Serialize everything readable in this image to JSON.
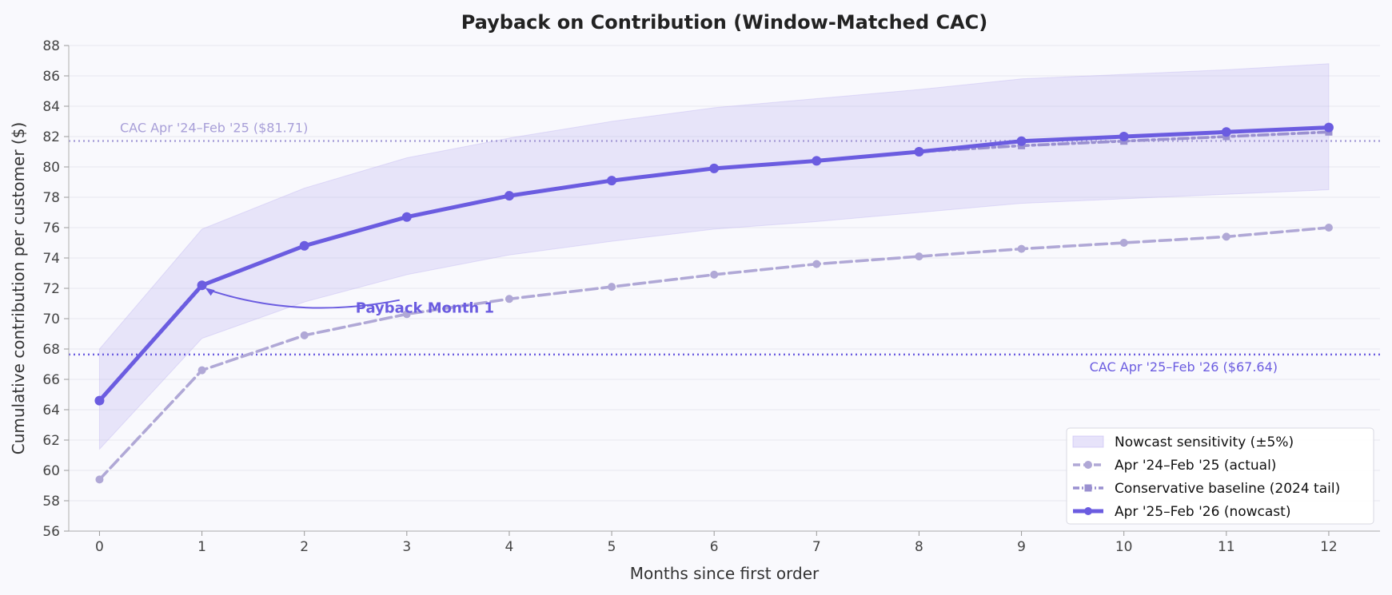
{
  "chart_data": {
    "type": "line",
    "title": "Payback on Contribution (Window-Matched CAC)",
    "xlabel": "Months since first order",
    "ylabel": "Cumulative contribution per customer ($)",
    "x": [
      0,
      1,
      2,
      3,
      4,
      5,
      6,
      7,
      8,
      9,
      10,
      11,
      12
    ],
    "xlim": [
      -0.3,
      12.5
    ],
    "ylim": [
      56,
      88
    ],
    "yticks": [
      56,
      58,
      60,
      62,
      64,
      66,
      68,
      70,
      72,
      74,
      76,
      78,
      80,
      82,
      84,
      86,
      88
    ],
    "grid": "horizontal",
    "legend_position": "bottom-right",
    "band": {
      "name": "Nowcast sensitivity (±5%)",
      "color": "#b9b0f0",
      "upper": [
        68.0,
        75.9,
        78.6,
        80.6,
        81.9,
        83.0,
        83.9,
        84.5,
        85.1,
        85.8,
        86.1,
        86.4,
        86.8
      ],
      "lower": [
        61.4,
        68.7,
        71.1,
        72.9,
        74.2,
        75.1,
        75.9,
        76.4,
        77.0,
        77.6,
        77.9,
        78.2,
        78.5
      ]
    },
    "series": [
      {
        "name": "Apr '24–Feb '25 (actual)",
        "color": "#b0a8d6",
        "style": "dashed",
        "marker": "circle",
        "values": [
          59.4,
          66.6,
          68.9,
          70.3,
          71.3,
          72.1,
          72.9,
          73.6,
          74.1,
          74.6,
          75.0,
          75.4,
          76.0
        ]
      },
      {
        "name": "Conservative baseline (2024 tail)",
        "color": "#9a90d0",
        "style": "dashdot",
        "marker": "square",
        "x": [
          8,
          9,
          10,
          11,
          12
        ],
        "values": [
          81.0,
          81.4,
          81.7,
          82.0,
          82.3
        ]
      },
      {
        "name": "Apr '25–Feb '26 (nowcast)",
        "color": "#6b5ce0",
        "style": "solid",
        "marker": "circle",
        "values": [
          64.6,
          72.2,
          74.8,
          76.7,
          78.1,
          79.1,
          79.9,
          80.4,
          81.0,
          81.7,
          82.0,
          82.3,
          82.6
        ]
      }
    ],
    "reference_lines": [
      {
        "label": "CAC Apr '24–Feb '25 ($81.71)",
        "value": 81.71,
        "color": "#a89fd8"
      },
      {
        "label": "CAC Apr '25–Feb '26 ($67.64)",
        "value": 67.64,
        "color": "#6b5ce0"
      }
    ],
    "annotation": {
      "text": "Payback Month 1",
      "point_x": 1,
      "point_y": 72.2,
      "text_x": 2.5,
      "text_y": 70.7,
      "color": "#6b5ce0"
    }
  }
}
